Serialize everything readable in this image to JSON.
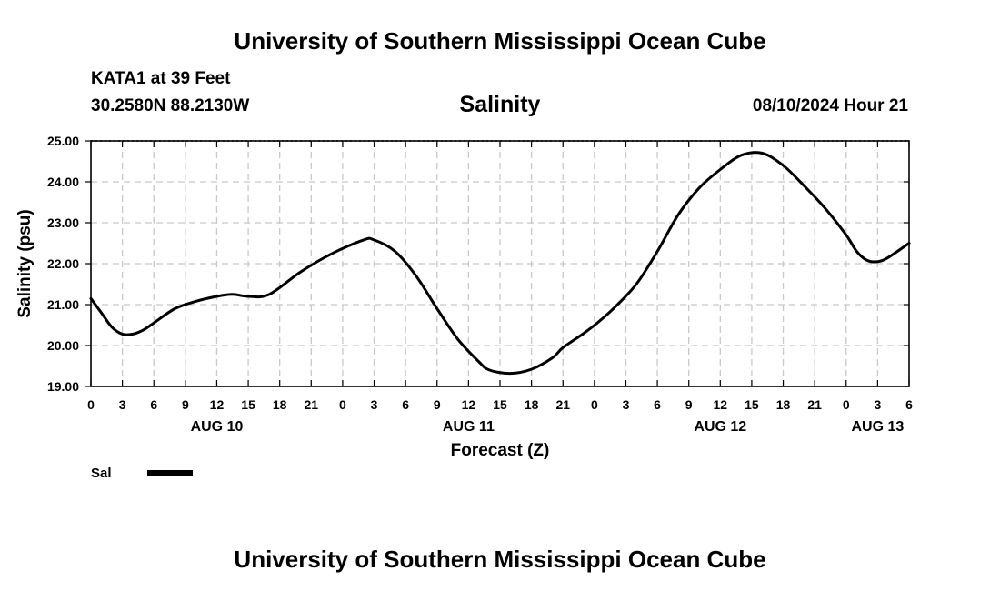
{
  "header": {
    "title": "University of Southern Mississippi Ocean Cube",
    "station": "KATA1 at 39 Feet",
    "coords": "30.2580N  88.2130W",
    "timestamp": "08/10/2024 Hour 21"
  },
  "footer": {
    "title": "University of Southern Mississippi Ocean Cube"
  },
  "colors": {
    "line": "#000000",
    "grid": "#c8c8c8",
    "axis": "#000000"
  },
  "chart_data": {
    "type": "line",
    "title": "Salinity",
    "xlabel": "Forecast (Z)",
    "ylabel": "Salinity (psu)",
    "ylim": [
      19,
      25
    ],
    "xlim": [
      0,
      78
    ],
    "x_unit": "hours from 08/10 00Z",
    "grid": true,
    "y_ticks": [
      19,
      20,
      21,
      22,
      23,
      24,
      25
    ],
    "y_tick_labels": [
      "19.00",
      "20.00",
      "21.00",
      "22.00",
      "23.00",
      "24.00",
      "25.00"
    ],
    "x_ticks": [
      0,
      3,
      6,
      9,
      12,
      15,
      18,
      21,
      24,
      27,
      30,
      33,
      36,
      39,
      42,
      45,
      48,
      51,
      54,
      57,
      60,
      63,
      66,
      69,
      72,
      75,
      78
    ],
    "x_tick_labels": [
      "0",
      "3",
      "6",
      "9",
      "12",
      "15",
      "18",
      "21",
      "0",
      "3",
      "6",
      "9",
      "12",
      "15",
      "18",
      "21",
      "0",
      "3",
      "6",
      "9",
      "12",
      "15",
      "18",
      "21",
      "0",
      "3",
      "6"
    ],
    "date_labels": [
      {
        "x": 12,
        "label": "AUG 10"
      },
      {
        "x": 36,
        "label": "AUG 11"
      },
      {
        "x": 60,
        "label": "AUG 12"
      },
      {
        "x": 75,
        "label": "AUG 13"
      }
    ],
    "legend": {
      "placement": "bottom-left",
      "entries": [
        "Sal"
      ]
    },
    "series": [
      {
        "name": "Sal",
        "x": [
          0,
          1,
          2,
          3,
          4,
          5,
          6,
          8,
          10,
          12,
          13.5,
          15,
          17,
          20,
          23,
          26,
          27,
          29,
          31,
          33,
          35,
          37,
          38,
          40,
          42,
          44,
          45,
          47,
          48.5,
          50,
          52,
          54,
          56,
          58,
          60,
          62,
          64,
          66,
          68,
          70,
          72,
          73,
          74,
          75,
          76,
          78
        ],
        "values": [
          21.15,
          20.8,
          20.45,
          20.28,
          20.28,
          20.38,
          20.55,
          20.9,
          21.08,
          21.2,
          21.25,
          21.2,
          21.25,
          21.8,
          22.25,
          22.58,
          22.58,
          22.3,
          21.7,
          20.9,
          20.15,
          19.6,
          19.4,
          19.32,
          19.42,
          19.7,
          19.95,
          20.3,
          20.6,
          20.95,
          21.5,
          22.3,
          23.2,
          23.85,
          24.3,
          24.65,
          24.7,
          24.4,
          23.9,
          23.35,
          22.7,
          22.3,
          22.08,
          22.05,
          22.15,
          22.5
        ]
      }
    ]
  }
}
